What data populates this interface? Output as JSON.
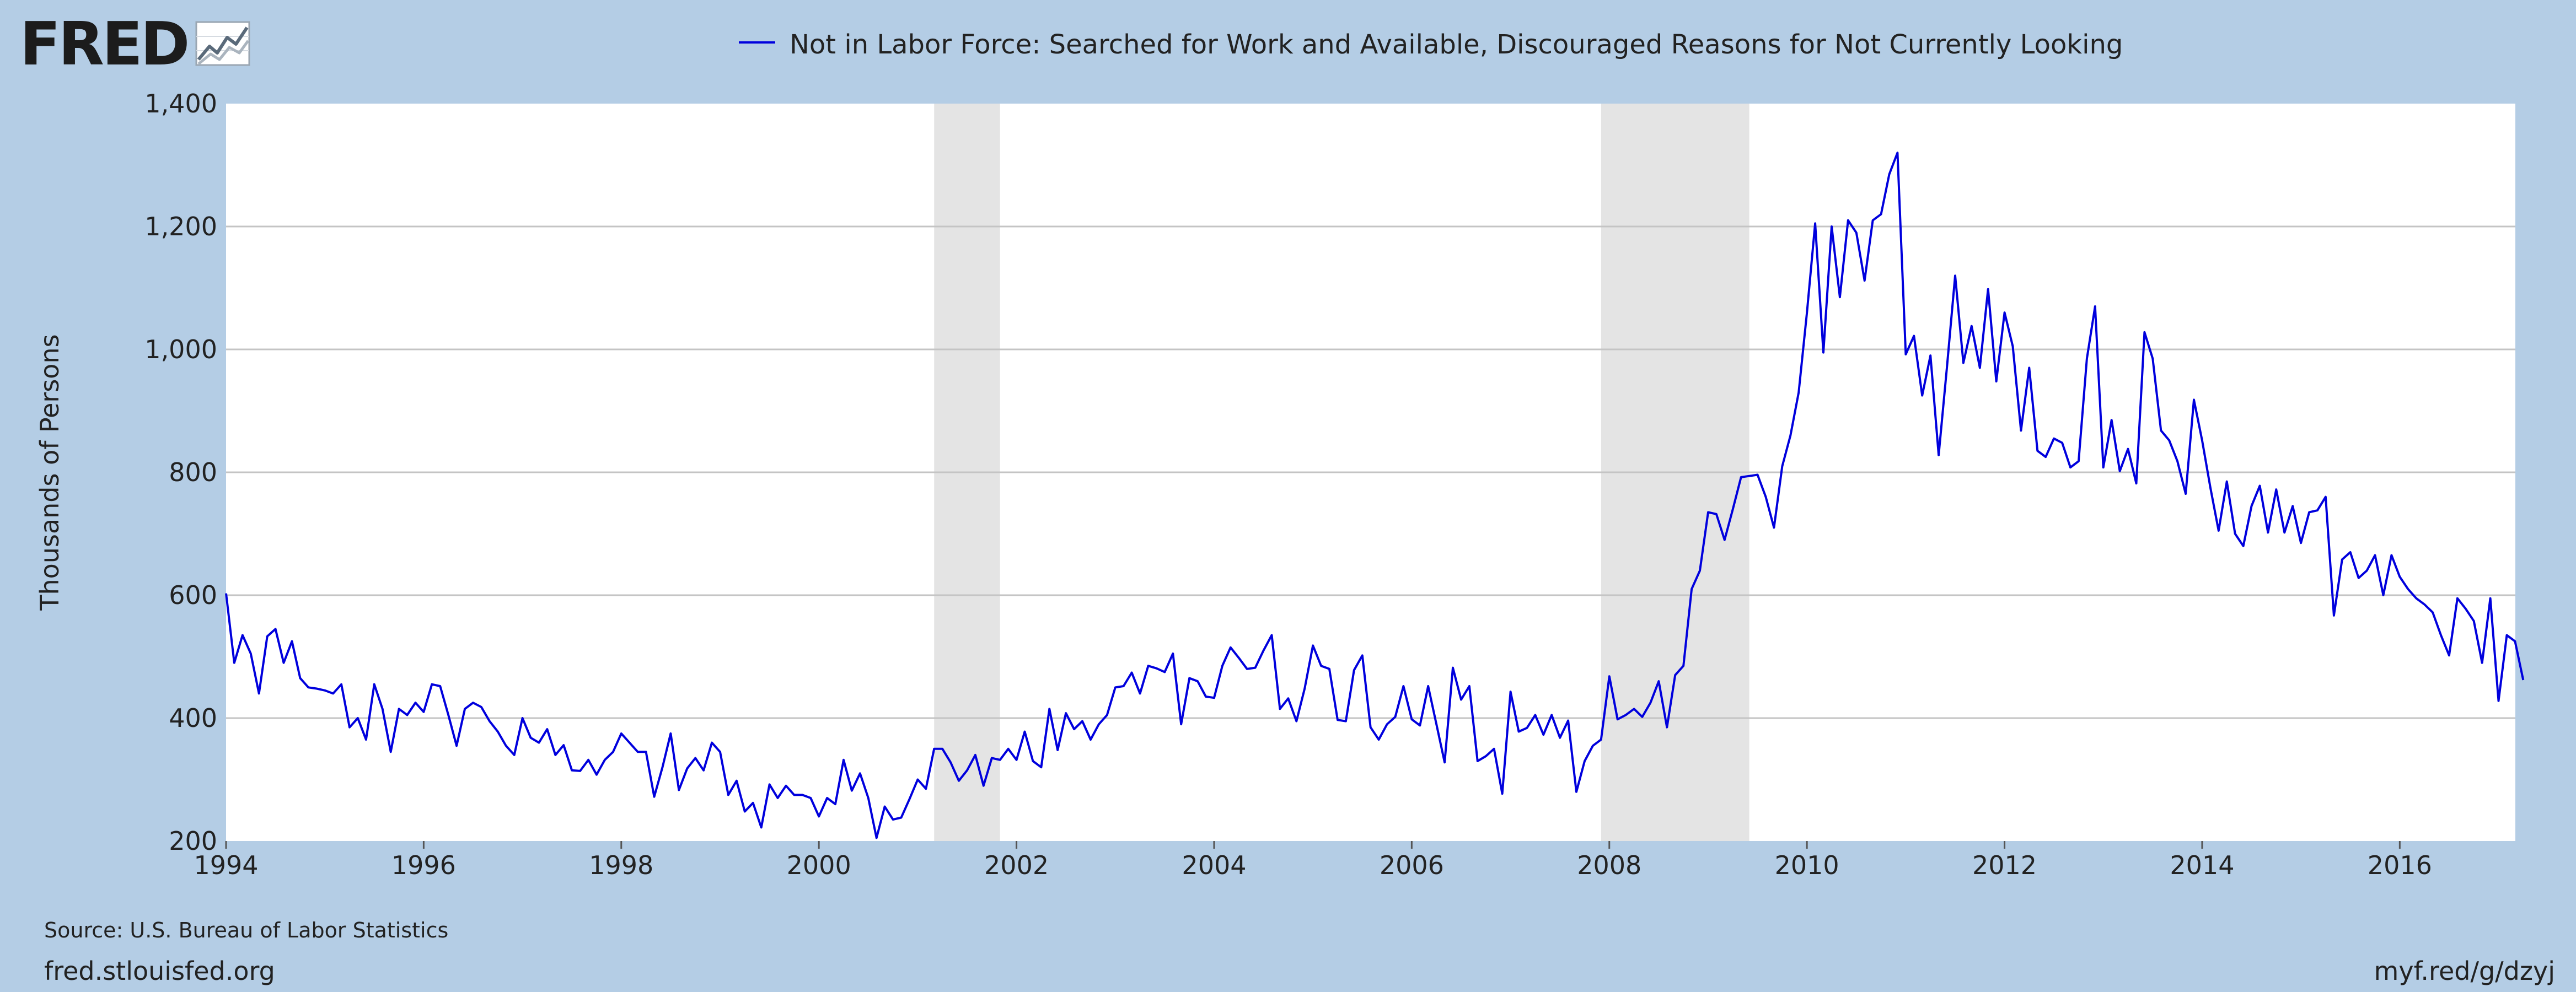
{
  "header": {
    "logo_text": "FRED",
    "logo_icon": "fred-graph-icon"
  },
  "legend": {
    "label": "Not in Labor Force: Searched for Work and Available, Discouraged Reasons for Not Currently Looking"
  },
  "footer": {
    "source": "Source: U.S. Bureau of Labor Statistics",
    "site": "fred.stlouisfed.org",
    "short_link": "myf.red/g/dzyj"
  },
  "colors": {
    "page_background": "#b4cde5",
    "plot_background": "#ffffff",
    "series_line": "#0000dd",
    "recession_band": "#e4e4e4",
    "gridline": "#c4c4c4"
  },
  "chart_data": {
    "type": "line",
    "ylabel": "Thousands of Persons",
    "xlim": [
      1994.0,
      2017.17
    ],
    "ylim": [
      200,
      1400
    ],
    "x_ticks": [
      "1994",
      "1996",
      "1998",
      "2000",
      "2002",
      "2004",
      "2006",
      "2008",
      "2010",
      "2012",
      "2014",
      "2016"
    ],
    "y_ticks": [
      "200",
      "400",
      "600",
      "800",
      "1,000",
      "1,200",
      "1,400"
    ],
    "grid": true,
    "legend_position": "top",
    "recessions": [
      {
        "start": "2001-03",
        "end": "2001-11"
      },
      {
        "start": "2007-12",
        "end": "2009-06"
      }
    ],
    "series": [
      {
        "name": "Not in Labor Force: Searched for Work and Available, Discouraged Reasons for Not Currently Looking",
        "frequency": "monthly",
        "start": "1994-01",
        "values": [
          603,
          490,
          535,
          505,
          440,
          533,
          545,
          490,
          525,
          465,
          450,
          448,
          445,
          440,
          455,
          385,
          400,
          365,
          455,
          415,
          345,
          415,
          405,
          425,
          410,
          455,
          452,
          405,
          355,
          415,
          425,
          418,
          395,
          378,
          355,
          340,
          400,
          368,
          360,
          382,
          340,
          356,
          315,
          314,
          332,
          308,
          332,
          345,
          375,
          360,
          345,
          345,
          272,
          320,
          375,
          283,
          318,
          335,
          315,
          360,
          345,
          275,
          298,
          248,
          262,
          222,
          292,
          270,
          290,
          275,
          275,
          270,
          240,
          270,
          260,
          332,
          282,
          310,
          270,
          205,
          256,
          235,
          238,
          268,
          300,
          285,
          350,
          350,
          328,
          298,
          315,
          340,
          290,
          335,
          332,
          350,
          332,
          378,
          330,
          320,
          415,
          348,
          408,
          382,
          395,
          365,
          390,
          405,
          450,
          452,
          474,
          440,
          485,
          481,
          475,
          505,
          390,
          465,
          460,
          435,
          433,
          485,
          515,
          498,
          480,
          482,
          510,
          535,
          415,
          432,
          395,
          448,
          518,
          485,
          480,
          397,
          395,
          478,
          502,
          385,
          365,
          390,
          402,
          452,
          398,
          388,
          452,
          390,
          328,
          482,
          430,
          452,
          330,
          338,
          350,
          277,
          443,
          378,
          384,
          405,
          373,
          405,
          368,
          396,
          280,
          330,
          355,
          365,
          468,
          398,
          405,
          415,
          402,
          425,
          460,
          385,
          470,
          485,
          610,
          640,
          735,
          732,
          690,
          740,
          792,
          794,
          796,
          760,
          710,
          810,
          860,
          930,
          1060,
          1205,
          995,
          1200,
          1085,
          1210,
          1190,
          1112,
          1210,
          1220,
          1285,
          1320,
          992,
          1022,
          925,
          990,
          828,
          970,
          1120,
          978,
          1038,
          970,
          1098,
          948,
          1060,
          1005,
          868,
          970,
          835,
          825,
          855,
          848,
          808,
          818,
          985,
          1070,
          808,
          885,
          802,
          838,
          782,
          1028,
          985,
          868,
          852,
          818,
          765,
          918,
          852,
          775,
          705,
          785,
          700,
          680,
          745,
          778,
          702,
          772,
          702,
          745,
          685,
          735,
          738,
          760,
          567,
          658,
          670,
          628,
          640,
          665,
          600,
          665,
          630,
          610,
          595,
          585,
          572,
          535,
          502,
          595,
          578,
          558,
          490,
          595,
          428,
          535,
          525,
          462
        ]
      }
    ]
  }
}
